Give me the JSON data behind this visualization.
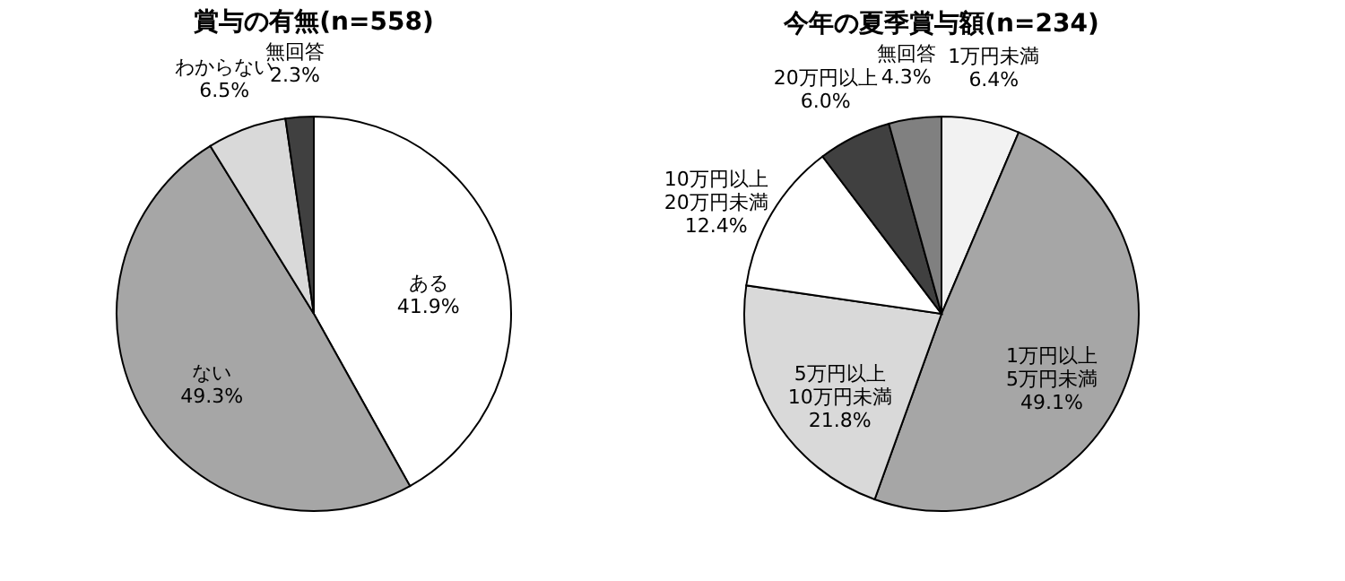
{
  "chart_data": [
    {
      "type": "pie",
      "title": "賞与の有無(n=558)",
      "categories": [
        "ある",
        "ない",
        "わからない",
        "無回答"
      ],
      "values": [
        41.9,
        49.3,
        6.5,
        2.3
      ],
      "value_labels": [
        "41.9%",
        "49.3%",
        "6.5%",
        "2.3%"
      ],
      "colors": [
        "#ffffff",
        "#a6a6a6",
        "#d9d9d9",
        "#404040"
      ],
      "legend": false
    },
    {
      "type": "pie",
      "title": "今年の夏季賞与額(n=234)",
      "categories": [
        "1万円未満",
        "1万円以上\n5万円未満",
        "5万円以上\n10万円未満",
        "10万円以上\n20万円未満",
        "20万円以上",
        "無回答"
      ],
      "values": [
        6.4,
        49.1,
        21.8,
        12.4,
        6.0,
        4.3
      ],
      "value_labels": [
        "6.4%",
        "49.1%",
        "21.8%",
        "12.4%",
        "6.0%",
        "4.3%"
      ],
      "colors": [
        "#f2f2f2",
        "#a6a6a6",
        "#d9d9d9",
        "#ffffff",
        "#404040",
        "#808080"
      ],
      "legend": false
    }
  ]
}
